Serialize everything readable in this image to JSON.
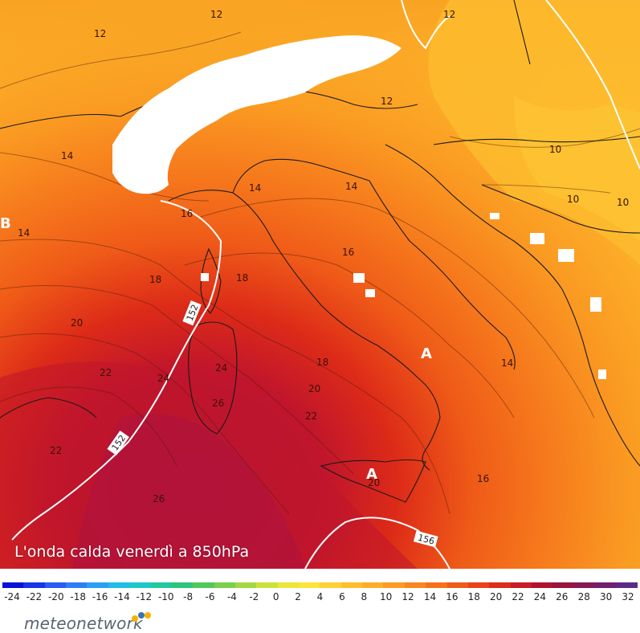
{
  "map": {
    "caption": "L'onda calda venerdì a 850hPa",
    "pressure_labels": [
      {
        "id": "B",
        "text": "B",
        "color": "#ffffff"
      },
      {
        "id": "A1",
        "text": "A",
        "color": "#ffffff"
      },
      {
        "id": "A2",
        "text": "A",
        "color": "#ffffff"
      }
    ],
    "geopotential_labels": [
      "152",
      "152",
      "156"
    ],
    "isotherm_labels": [
      "12",
      "12",
      "12",
      "12",
      "14",
      "14",
      "14",
      "14",
      "16",
      "16",
      "16",
      "18",
      "18",
      "18",
      "20",
      "20",
      "20",
      "22",
      "22",
      "22",
      "24",
      "24",
      "26",
      "26",
      "10",
      "10",
      "10",
      "14"
    ]
  },
  "legend": {
    "ticks": [
      "-24",
      "-22",
      "-20",
      "-18",
      "-16",
      "-14",
      "-12",
      "-10",
      "-8",
      "-6",
      "-4",
      "-2",
      "0",
      "2",
      "4",
      "6",
      "8",
      "10",
      "12",
      "14",
      "16",
      "18",
      "20",
      "22",
      "24",
      "26",
      "28",
      "30",
      "32"
    ],
    "colors": [
      "#0a10d8",
      "#1736e6",
      "#2a5cf0",
      "#2f7ef4",
      "#2aa0f2",
      "#22bce6",
      "#1ec8c8",
      "#22c8a0",
      "#2ec47a",
      "#52c85a",
      "#7ad04a",
      "#a4d842",
      "#cce23c",
      "#ece63a",
      "#fce43a",
      "#fed034",
      "#febe2e",
      "#fdad28",
      "#fc9a24",
      "#f98620",
      "#f5701c",
      "#ef5a1a",
      "#e84418",
      "#dc2c1a",
      "#c81c26",
      "#b0142e",
      "#9a1440",
      "#861a56",
      "#70206e",
      "#5c2a86"
    ]
  },
  "brand": {
    "name": "meteonetwork",
    "dot_colors": [
      "#f5b301",
      "#3f6fb5",
      "#f5b301"
    ]
  }
}
